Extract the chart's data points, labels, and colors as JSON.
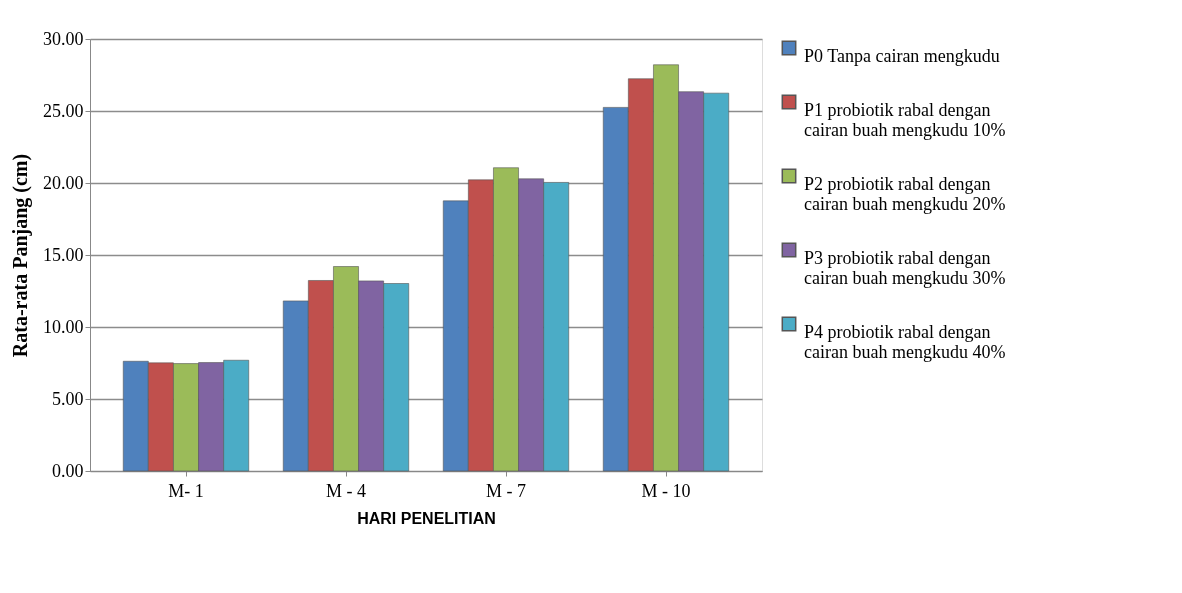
{
  "chart_data": {
    "type": "bar",
    "xlabel": "HARI PENELITIAN",
    "ylabel": "Rata-rata Panjang (cm)",
    "categories": [
      "M- 1",
      "M - 4",
      "M - 7",
      "M - 10"
    ],
    "series": [
      {
        "name": "P0 Tanpa cairan mengkudu",
        "color": "#4f81bd",
        "values": [
          7.62,
          11.81,
          18.76,
          25.25
        ]
      },
      {
        "name": "P1 probiotik rabal dengan cairan buah mengkudu 10%",
        "color": "#c0504d",
        "values": [
          7.51,
          13.23,
          20.22,
          27.24
        ]
      },
      {
        "name": "P2 probiotik rabal dengan cairan buah mengkudu 20%",
        "color": "#9bbb59",
        "values": [
          7.46,
          14.2,
          21.06,
          28.21
        ]
      },
      {
        "name": "P3 probiotik rabal dengan cairan buah mengkudu 30%",
        "color": "#8064a2",
        "values": [
          7.53,
          13.2,
          20.29,
          26.34
        ]
      },
      {
        "name": "P4 probiotik rabal dengan cairan buah mengkudu 40%",
        "color": "#4bacc6",
        "values": [
          7.69,
          13.02,
          20.04,
          26.24
        ]
      }
    ],
    "ylim": [
      0,
      30
    ],
    "yticks": [
      {
        "value": 0,
        "label": "0.00"
      },
      {
        "value": 5,
        "label": "5.00"
      },
      {
        "value": 10,
        "label": "10.00"
      },
      {
        "value": 15,
        "label": "15.00"
      },
      {
        "value": 20,
        "label": "20.00"
      },
      {
        "value": 25,
        "label": "25.00"
      },
      {
        "value": 30,
        "label": "30.00"
      }
    ],
    "grid": "y",
    "legend": "right"
  }
}
